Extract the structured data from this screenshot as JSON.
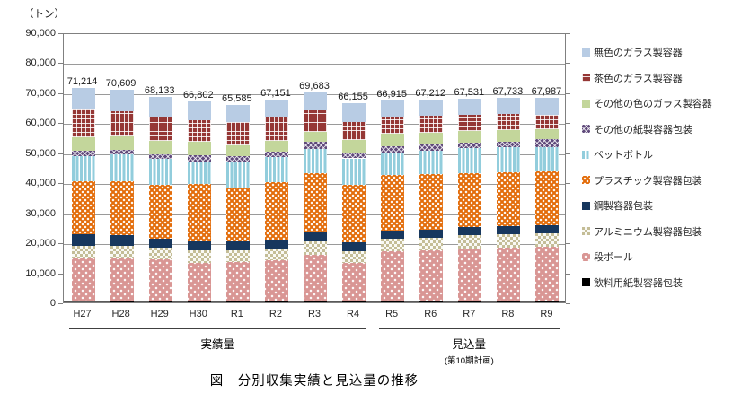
{
  "chart_data": {
    "type": "bar",
    "stacked": true,
    "title": "図　分別収集実績と見込量の推移",
    "unit_label": "（トン）",
    "ylim": [
      0,
      90000
    ],
    "ytick_step": 10000,
    "yticks": [
      "0",
      "10,000",
      "20,000",
      "30,000",
      "40,000",
      "50,000",
      "60,000",
      "70,000",
      "80,000",
      "90,000"
    ],
    "grid": true,
    "legend_position": "right",
    "categories": [
      "H27",
      "H28",
      "H29",
      "H30",
      "R1",
      "R2",
      "R3",
      "R4",
      "R5",
      "R6",
      "R7",
      "R8",
      "R9"
    ],
    "totals": [
      71214,
      70609,
      68133,
      66802,
      65585,
      67151,
      69683,
      66155,
      66915,
      67212,
      67531,
      67733,
      67987
    ],
    "total_labels": [
      "71,214",
      "70,609",
      "68,133",
      "66,802",
      "65,585",
      "67,151",
      "69,683",
      "66,155",
      "66,915",
      "67,212",
      "67,531",
      "67,733",
      "67,987"
    ],
    "groups": [
      {
        "label": "実績量",
        "start": 0,
        "end": 7,
        "note": ""
      },
      {
        "label": "見込量",
        "start": 8,
        "end": 12,
        "note": "(第10期計画)"
      }
    ],
    "series": [
      {
        "name": "飲料用紙製容器包装",
        "color": "#000000",
        "pattern": "solid",
        "values": [
          300,
          100,
          100,
          100,
          100,
          100,
          100,
          100,
          100,
          100,
          100,
          100,
          100
        ]
      },
      {
        "name": "段ボール",
        "color": "#d99694",
        "pattern": "dots",
        "values": [
          14100,
          14400,
          13900,
          12900,
          13200,
          13600,
          15400,
          12700,
          16600,
          16900,
          17600,
          17900,
          18200
        ]
      },
      {
        "name": "アルミニウム製容器包装",
        "color": "#c4bd97",
        "pattern": "checker",
        "values": [
          4000,
          4000,
          4000,
          4000,
          3700,
          3800,
          4500,
          4000,
          4300,
          4300,
          4300,
          4400,
          4400
        ]
      },
      {
        "name": "鋼製容器包装",
        "color": "#17375e",
        "pattern": "solid",
        "values": [
          4000,
          3500,
          3000,
          3000,
          3000,
          3000,
          3300,
          3000,
          2700,
          2700,
          2700,
          2700,
          2600
        ]
      },
      {
        "name": "プラスチック製容器包装",
        "color": "#e36c0a",
        "pattern": "dots-dense",
        "values": [
          17700,
          18000,
          17900,
          19300,
          18000,
          19400,
          19600,
          19000,
          18600,
          18400,
          18000,
          18000,
          18000
        ]
      },
      {
        "name": "ペットボトル",
        "color": "#92cddc",
        "pattern": "vstripes",
        "values": [
          8300,
          9000,
          8500,
          7300,
          8500,
          8300,
          8000,
          8900,
          7300,
          7800,
          8300,
          8200,
          8000
        ]
      },
      {
        "name": "その他の紙製容器包装",
        "color": "#604a7b",
        "pattern": "diagonal",
        "values": [
          1800,
          1500,
          1700,
          2200,
          1800,
          1700,
          2300,
          1800,
          2000,
          2000,
          2000,
          2000,
          2700
        ]
      },
      {
        "name": "その他の色のガラス製容器",
        "color": "#c3d69b",
        "pattern": "solid",
        "values": [
          4400,
          4500,
          4300,
          4400,
          3700,
          3700,
          3400,
          4400,
          4300,
          4100,
          3700,
          3700,
          3300
        ]
      },
      {
        "name": "茶色のガラス製容器",
        "color": "#953735",
        "pattern": "grid",
        "values": [
          9300,
          8500,
          8300,
          7200,
          7700,
          7900,
          7000,
          6000,
          5700,
          5600,
          5600,
          5500,
          5000
        ]
      },
      {
        "name": "無色のガラス製容器",
        "color": "#b8cce4",
        "pattern": "solid",
        "values": [
          7314,
          7109,
          6433,
          6402,
          5885,
          5651,
          6083,
          6255,
          5315,
          5312,
          5231,
          5233,
          5687
        ]
      }
    ]
  }
}
